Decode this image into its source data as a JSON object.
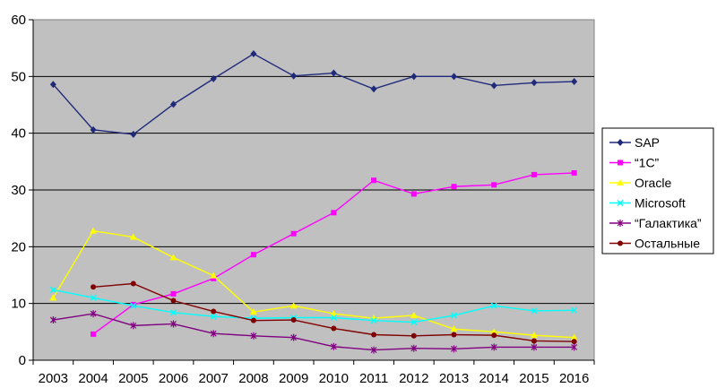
{
  "chart_data": {
    "type": "line",
    "title": "",
    "xlabel": "",
    "ylabel": "",
    "ylim": [
      0,
      60
    ],
    "yticks": [
      0,
      10,
      20,
      30,
      40,
      50,
      60
    ],
    "x": [
      "2003",
      "2004",
      "2005",
      "2006",
      "2007",
      "2008",
      "2009",
      "2010",
      "2011",
      "2012",
      "2013",
      "2014",
      "2015",
      "2016"
    ],
    "grid": "horizontal",
    "legend_position": "right",
    "series": [
      {
        "name": "SAP",
        "color": "#1f2a7a",
        "marker": "diamond",
        "values": [
          48.6,
          40.6,
          39.8,
          45.1,
          49.6,
          54.0,
          50.1,
          50.6,
          47.8,
          50.0,
          50.0,
          48.4,
          48.9,
          49.1
        ]
      },
      {
        "name": "“1С”",
        "color": "#ff00ff",
        "marker": "square",
        "values": [
          null,
          4.6,
          9.8,
          11.7,
          14.4,
          18.6,
          22.3,
          26.0,
          31.7,
          29.3,
          30.6,
          30.9,
          32.7,
          33.0
        ]
      },
      {
        "name": "Oracle",
        "color": "#ffff00",
        "marker": "triangle",
        "values": [
          11.0,
          22.8,
          21.7,
          18.1,
          14.9,
          8.5,
          9.6,
          8.2,
          7.4,
          7.9,
          5.5,
          5.0,
          4.4,
          4.0
        ]
      },
      {
        "name": "Microsoft",
        "color": "#00ffff",
        "marker": "x",
        "values": [
          12.4,
          11.0,
          9.6,
          8.4,
          7.7,
          7.4,
          7.5,
          7.5,
          7.0,
          6.7,
          7.9,
          9.6,
          8.7,
          8.8
        ]
      },
      {
        "name": "“Галактика”",
        "color": "#800080",
        "marker": "asterisk",
        "values": [
          7.1,
          8.2,
          6.1,
          6.4,
          4.7,
          4.3,
          4.0,
          2.4,
          1.8,
          2.1,
          2.0,
          2.3,
          2.3,
          2.3
        ]
      },
      {
        "name": "Остальные",
        "color": "#800000",
        "marker": "circle",
        "values": [
          null,
          12.9,
          13.5,
          10.5,
          8.6,
          7.0,
          7.1,
          5.6,
          4.5,
          4.3,
          4.5,
          4.4,
          3.4,
          3.3
        ]
      }
    ]
  }
}
